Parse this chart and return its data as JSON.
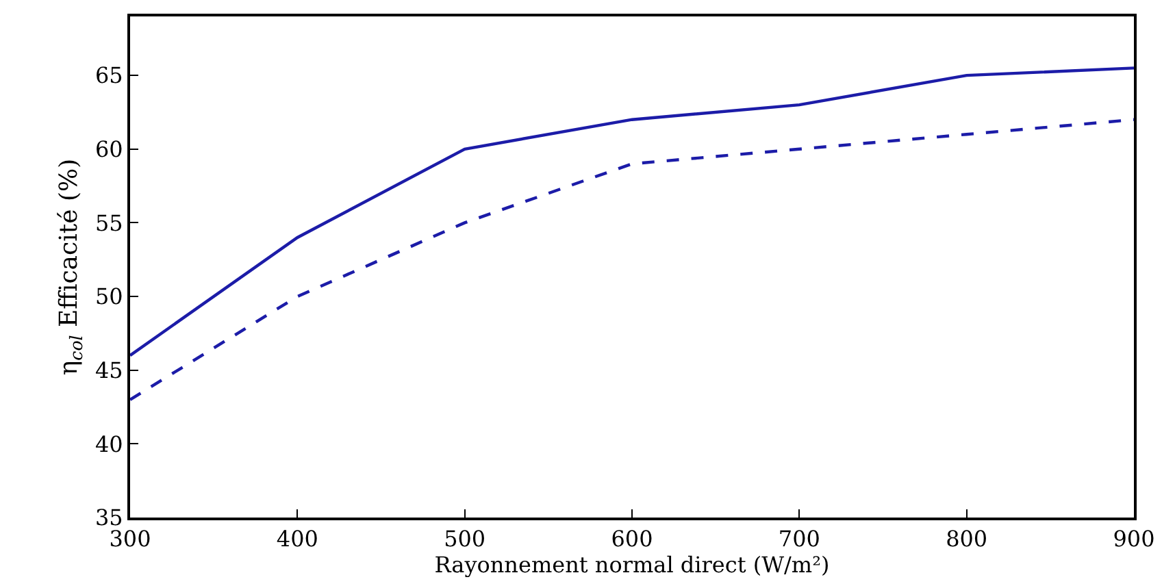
{
  "chart_data": {
    "type": "line",
    "xlabel": "Rayonnement normal direct (W/m²)",
    "ylabel": "η$_{col}$ Efficacité (%)",
    "x": [
      300,
      400,
      500,
      600,
      700,
      800,
      900
    ],
    "series": [
      {
        "color": "#1c1ca8",
        "line_style": "solid",
        "values": [
          46,
          54,
          60,
          62,
          63,
          65,
          65.5
        ]
      },
      {
        "color": "#1c1ca8",
        "line_style": "dashed",
        "values": [
          43,
          50,
          55,
          59,
          60,
          61,
          62
        ]
      }
    ],
    "xlim": [
      300,
      900
    ],
    "xticks": [
      300,
      400,
      500,
      600,
      700,
      800,
      900
    ],
    "ylim": [
      35,
      69
    ],
    "yticks": [
      35,
      40,
      45,
      50,
      55,
      60,
      65
    ],
    "marker": "none"
  }
}
